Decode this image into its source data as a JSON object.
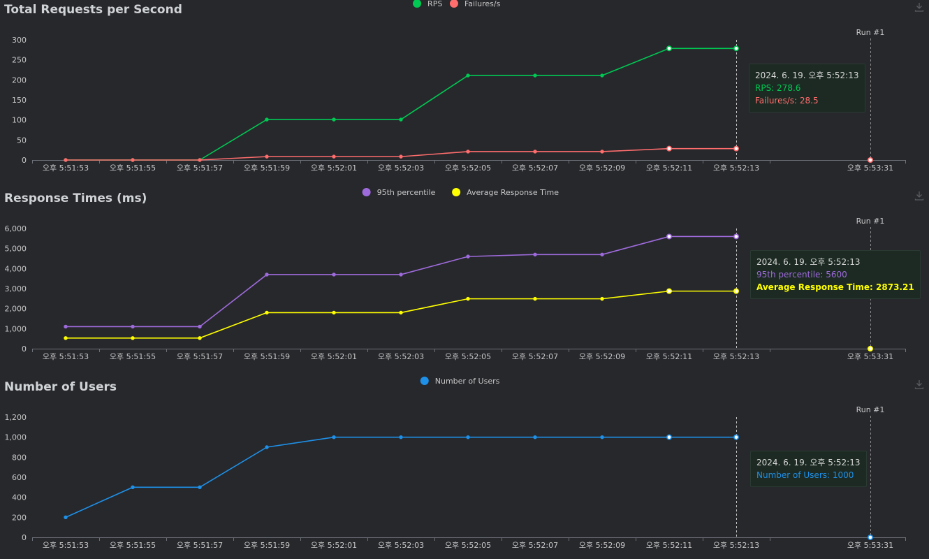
{
  "charts": [
    {
      "title": "Total Requests per Second",
      "run_label": "Run #1",
      "y_ticks": [
        "0",
        "50",
        "100",
        "150",
        "200",
        "250",
        "300"
      ],
      "y_tick_values": [
        0,
        50,
        100,
        150,
        200,
        250,
        300
      ],
      "ylim": [
        0,
        300
      ],
      "series": [
        {
          "name": "RPS",
          "color": "#00c853",
          "values": [
            0,
            0,
            0,
            101,
            101,
            101,
            211,
            211,
            211,
            278.6,
            278.6,
            null
          ]
        },
        {
          "name": "Failures/s",
          "color": "#ff6d6d",
          "values": [
            0,
            0,
            0,
            8.5,
            8.5,
            8.5,
            21,
            21,
            21,
            28.5,
            28.5,
            0
          ]
        }
      ],
      "tooltip": {
        "date": "2024. 6. 19. 오후 5:52:13",
        "lines": [
          {
            "text": "RPS: 278.6",
            "color": "#00c853",
            "bold": false
          },
          {
            "text": "Failures/s: 28.5",
            "color": "#ff6d6d",
            "bold": false
          }
        ]
      }
    },
    {
      "title": "Response Times (ms)",
      "run_label": "Run #1",
      "y_ticks": [
        "0",
        "1,000",
        "2,000",
        "3,000",
        "4,000",
        "5,000",
        "6,000"
      ],
      "y_tick_values": [
        0,
        1000,
        2000,
        3000,
        4000,
        5000,
        6000
      ],
      "ylim": [
        0,
        6000
      ],
      "series": [
        {
          "name": "95th percentile",
          "color": "#9e6bdc",
          "values": [
            1100,
            1100,
            1100,
            3700,
            3700,
            3700,
            4600,
            4700,
            4700,
            5600,
            5600,
            null
          ]
        },
        {
          "name": "Average Response Time",
          "color": "#ffff00",
          "values": [
            530,
            530,
            530,
            1800,
            1800,
            1800,
            2490,
            2490,
            2490,
            2873.21,
            2873.21,
            0
          ]
        }
      ],
      "tooltip": {
        "date": "2024. 6. 19. 오후 5:52:13",
        "lines": [
          {
            "text": "95th percentile: 5600",
            "color": "#9e6bdc",
            "bold": false
          },
          {
            "text": "Average Response Time: 2873.21",
            "color": "#ffff00",
            "bold": true
          }
        ]
      }
    },
    {
      "title": "Number of Users",
      "run_label": "Run #1",
      "y_ticks": [
        "0",
        "200",
        "400",
        "600",
        "800",
        "1,000",
        "1,200"
      ],
      "y_tick_values": [
        0,
        200,
        400,
        600,
        800,
        1000,
        1200
      ],
      "ylim": [
        0,
        1200
      ],
      "series": [
        {
          "name": "Number of Users",
          "color": "#1e90e8",
          "values": [
            200,
            500,
            500,
            900,
            1000,
            1000,
            1000,
            1000,
            1000,
            1000,
            1000,
            0
          ]
        }
      ],
      "tooltip": {
        "date": "2024. 6. 19. 오후 5:52:13",
        "lines": [
          {
            "text": "Number of Users: 1000",
            "color": "#1e90e8",
            "bold": false
          }
        ]
      }
    }
  ],
  "x_labels": [
    "오후 5:51:53",
    "오후 5:51:55",
    "오후 5:51:57",
    "오후 5:51:59",
    "오후 5:52:01",
    "오후 5:52:03",
    "오후 5:52:05",
    "오후 5:52:07",
    "오후 5:52:09",
    "오후 5:52:11",
    "오후 5:52:13",
    "오후 5:53:31"
  ],
  "download_icon": "download-icon",
  "chart_data": [
    {
      "type": "line",
      "title": "Total Requests per Second",
      "x": [
        "오후 5:51:53",
        "오후 5:51:55",
        "오후 5:51:57",
        "오후 5:51:59",
        "오후 5:52:01",
        "오후 5:52:03",
        "오후 5:52:05",
        "오후 5:52:07",
        "오후 5:52:09",
        "오후 5:52:11",
        "오후 5:52:13",
        "오후 5:53:31"
      ],
      "series": [
        {
          "name": "RPS",
          "values": [
            0,
            0,
            0,
            101,
            101,
            101,
            211,
            211,
            211,
            278.6,
            278.6,
            null
          ]
        },
        {
          "name": "Failures/s",
          "values": [
            0,
            0,
            0,
            8.5,
            8.5,
            8.5,
            21,
            21,
            21,
            28.5,
            28.5,
            0
          ]
        }
      ],
      "ylim": [
        0,
        300
      ],
      "grid": false,
      "legend": "top-center"
    },
    {
      "type": "line",
      "title": "Response Times (ms)",
      "x": [
        "오후 5:51:53",
        "오후 5:51:55",
        "오후 5:51:57",
        "오후 5:51:59",
        "오후 5:52:01",
        "오후 5:52:03",
        "오후 5:52:05",
        "오후 5:52:07",
        "오후 5:52:09",
        "오후 5:52:11",
        "오후 5:52:13",
        "오후 5:53:31"
      ],
      "series": [
        {
          "name": "95th percentile",
          "values": [
            1100,
            1100,
            1100,
            3700,
            3700,
            3700,
            4600,
            4700,
            4700,
            5600,
            5600,
            null
          ]
        },
        {
          "name": "Average Response Time",
          "values": [
            530,
            530,
            530,
            1800,
            1800,
            1800,
            2490,
            2490,
            2490,
            2873.21,
            2873.21,
            0
          ]
        }
      ],
      "ylim": [
        0,
        6000
      ],
      "grid": false,
      "legend": "top-center"
    },
    {
      "type": "line",
      "title": "Number of Users",
      "x": [
        "오후 5:51:53",
        "오후 5:51:55",
        "오후 5:51:57",
        "오후 5:51:59",
        "오후 5:52:01",
        "오후 5:52:03",
        "오후 5:52:05",
        "오후 5:52:07",
        "오후 5:52:09",
        "오후 5:52:11",
        "오후 5:52:13",
        "오후 5:53:31"
      ],
      "series": [
        {
          "name": "Number of Users",
          "values": [
            200,
            500,
            500,
            900,
            1000,
            1000,
            1000,
            1000,
            1000,
            1000,
            1000,
            0
          ]
        }
      ],
      "ylim": [
        0,
        1200
      ],
      "grid": false,
      "legend": "top-center"
    }
  ]
}
